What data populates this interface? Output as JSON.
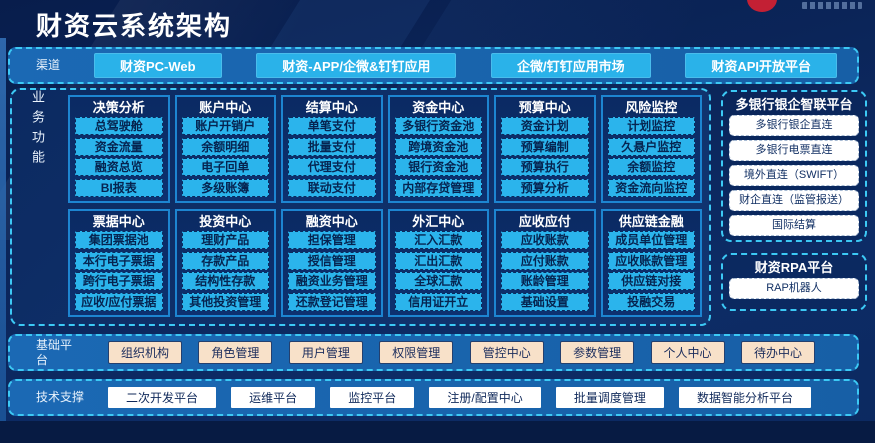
{
  "header": {
    "title": "财资云系统架构"
  },
  "channels": {
    "label": "渠道",
    "items": [
      "财资PC-Web",
      "财资-APP/企微&钉钉应用",
      "企微/钉钉应用市场",
      "财资API开放平台"
    ]
  },
  "business": {
    "label": "业务功能",
    "groups": [
      {
        "title": "决策分析",
        "items": [
          "总驾驶舱",
          "资金流量",
          "融资总览",
          "BI报表"
        ]
      },
      {
        "title": "账户中心",
        "items": [
          "账户开销户",
          "余额明细",
          "电子回单",
          "多级账簿"
        ]
      },
      {
        "title": "结算中心",
        "items": [
          "单笔支付",
          "批量支付",
          "代理支付",
          "联动支付"
        ]
      },
      {
        "title": "资金中心",
        "items": [
          "多银行资金池",
          "跨境资金池",
          "银行资金池",
          "内部存贷管理"
        ]
      },
      {
        "title": "预算中心",
        "items": [
          "资金计划",
          "预算编制",
          "预算执行",
          "预算分析"
        ]
      },
      {
        "title": "风险监控",
        "items": [
          "计划监控",
          "久悬户监控",
          "余额监控",
          "资金流向监控"
        ]
      },
      {
        "title": "票据中心",
        "items": [
          "集团票据池",
          "本行电子票据",
          "跨行电子票据",
          "应收/应付票据"
        ]
      },
      {
        "title": "投资中心",
        "items": [
          "理财产品",
          "存款产品",
          "结构性存款",
          "其他投资管理"
        ]
      },
      {
        "title": "融资中心",
        "items": [
          "担保管理",
          "授信管理",
          "融资业务管理",
          "还款登记管理"
        ]
      },
      {
        "title": "外汇中心",
        "items": [
          "汇入汇款",
          "汇出汇款",
          "全球汇款",
          "信用证开立"
        ]
      },
      {
        "title": "应收应付",
        "items": [
          "应收账款",
          "应付账款",
          "账龄管理",
          "基础设置"
        ]
      },
      {
        "title": "供应链金融",
        "items": [
          "成员单位管理",
          "应收账款管理",
          "供应链对接",
          "投融交易"
        ]
      }
    ]
  },
  "bank_platform": {
    "title": "多银行银企智联平台",
    "items": [
      "多银行银企直连",
      "多银行电票直连",
      "境外直连（SWIFT）",
      "财企直连（监管报送）",
      "国际结算"
    ]
  },
  "rpa_platform": {
    "title": "财资RPA平台",
    "items": [
      "RAP机器人"
    ]
  },
  "foundation": {
    "label": "基础平台",
    "items": [
      "组织机构",
      "角色管理",
      "用户管理",
      "权限管理",
      "管控中心",
      "参数管理",
      "个人中心",
      "待办中心"
    ]
  },
  "tech": {
    "label": "技术支撑",
    "items": [
      "二次开发平台",
      "运维平台",
      "监控平台",
      "注册/配置中心",
      "批量调度管理",
      "数据智能分析平台"
    ]
  },
  "colors": {
    "accent_cyan_border": "#3cc9f5",
    "item_cyan": "#2bb4ec",
    "band_blue": "#1b69b4",
    "navy_background": "#0b2559",
    "panel_navy": "#0d3170",
    "cream_item": "#f8e1c9",
    "white_item": "#ffffff",
    "logo_red": "#c32034"
  }
}
